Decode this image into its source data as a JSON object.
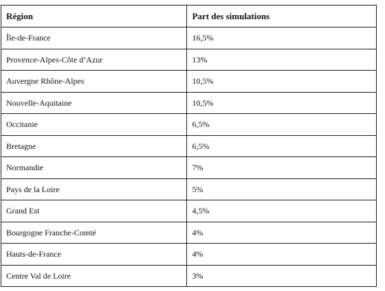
{
  "table": {
    "headers": [
      "Région",
      "Part des simulations"
    ],
    "rows": [
      [
        "Île-de-France",
        "16,5%"
      ],
      [
        "Provence-Alpes-Côte d’Azur",
        "13%"
      ],
      [
        "Auvergne Rhône-Alpes",
        "10,5%"
      ],
      [
        "Nouvelle-Aquitaine",
        "10,5%"
      ],
      [
        "Occitanie",
        "6,5%"
      ],
      [
        "Bretagne",
        "6,5%"
      ],
      [
        "Normandie",
        "7%"
      ],
      [
        "Pays de la Loire",
        "5%"
      ],
      [
        "Grand Est",
        "4,5%"
      ],
      [
        "Bourgogne Franche-Comté",
        "4%"
      ],
      [
        "Hauts-de-France",
        "4%"
      ],
      [
        "Centre Val de Loire",
        "3%"
      ]
    ]
  },
  "colors": {
    "border": "#1a1a1a",
    "text": "#111111",
    "background": "#ffffff"
  }
}
